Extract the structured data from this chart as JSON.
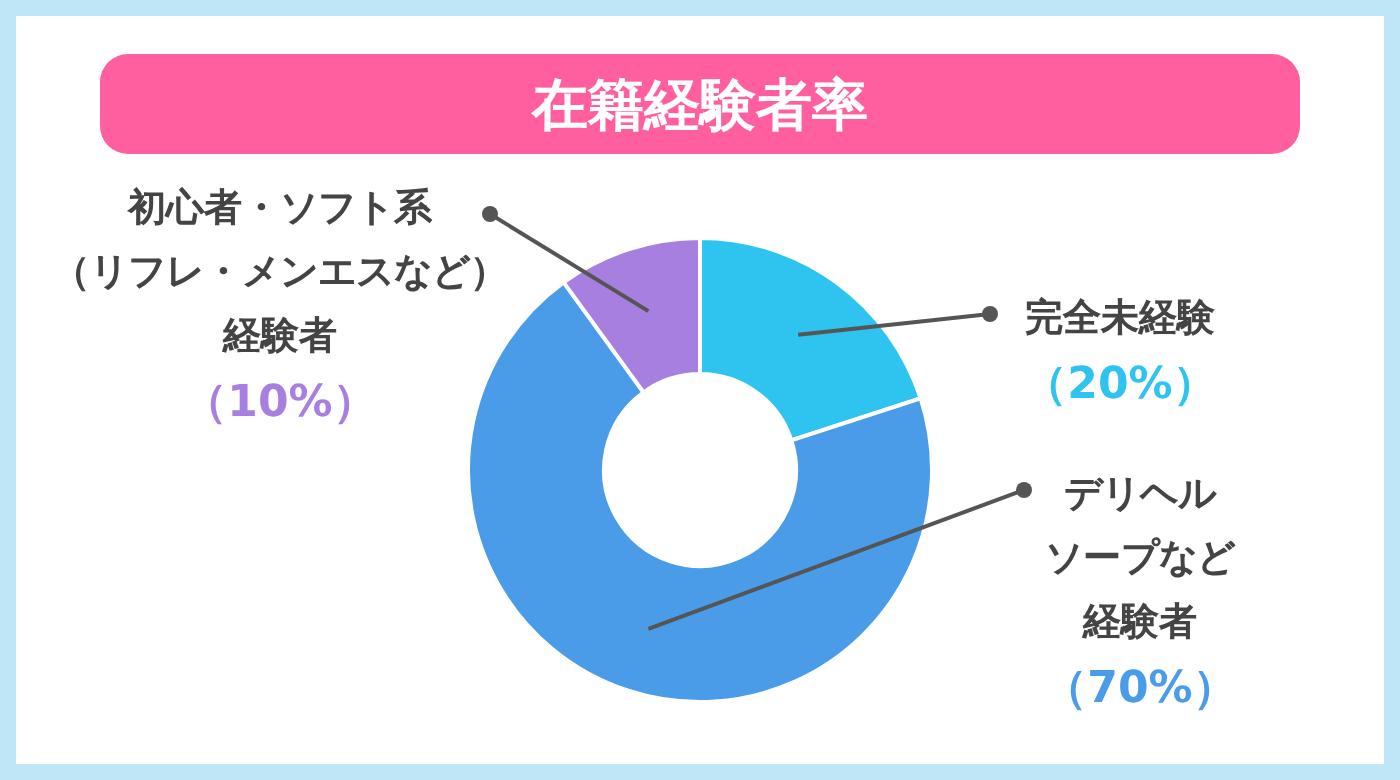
{
  "chart_data": {
    "type": "donut",
    "title": "在籍経験者率",
    "categories": [
      "完全未経験",
      "デリヘルソープなど経験者",
      "初心者・ソフト系（リフレ・メンエスなど）経験者"
    ],
    "values": [
      20,
      70,
      10
    ],
    "colors": [
      "#2ec4ef",
      "#4a9ce9",
      "#a67fe0"
    ],
    "value_labels": [
      "（20%）",
      "（70%）",
      "（10%）"
    ]
  }
}
